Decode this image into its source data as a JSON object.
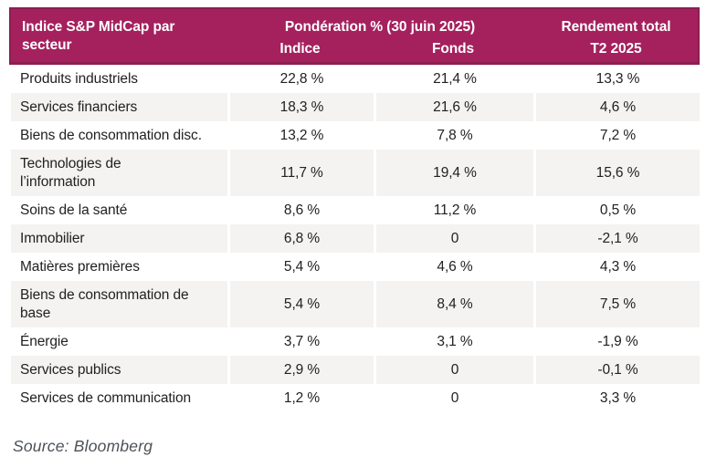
{
  "table": {
    "header": {
      "title": "Indice S&P MidCap par secteur",
      "weight_group": "Pondération % (30 juin 2025)",
      "sub_indice": "Indice",
      "sub_fonds": "Fonds",
      "return_title": "Rendement total",
      "return_period": "T2 2025"
    },
    "rows": [
      {
        "label": "Produits industriels",
        "indice": "22,8 %",
        "fonds": "21,4 %",
        "rendement": "13,3 %"
      },
      {
        "label": "Services financiers",
        "indice": "18,3 %",
        "fonds": "21,6 %",
        "rendement": "4,6 %"
      },
      {
        "label": "Biens de consommation disc.",
        "indice": "13,2 %",
        "fonds": "7,8 %",
        "rendement": "7,2 %"
      },
      {
        "label": "Technologies de\nl’information",
        "indice": "11,7 %",
        "fonds": "19,4 %",
        "rendement": "15,6 %"
      },
      {
        "label": "Soins de la santé",
        "indice": "8,6 %",
        "fonds": "11,2 %",
        "rendement": "0,5 %"
      },
      {
        "label": "Immobilier",
        "indice": "6,8 %",
        "fonds": "0",
        "rendement": "-2,1 %"
      },
      {
        "label": "Matières premières",
        "indice": "5,4 %",
        "fonds": "4,6 %",
        "rendement": "4,3 %"
      },
      {
        "label": "Biens de consommation de\nbase",
        "indice": "5,4 %",
        "fonds": "8,4 %",
        "rendement": "7,5 %"
      },
      {
        "label": "Énergie",
        "indice": "3,7 %",
        "fonds": "3,1 %",
        "rendement": "-1,9 %"
      },
      {
        "label": "Services publics",
        "indice": "2,9 %",
        "fonds": "0",
        "rendement": "-0,1 %"
      },
      {
        "label": "Services de communication",
        "indice": "1,2 %",
        "fonds": "0",
        "rendement": "3,3 %"
      }
    ]
  },
  "source": "Source: Bloomberg",
  "colors": {
    "header_bg": "#A4215E",
    "header_border": "#8C1E50",
    "stripe": "#F4F3F1",
    "body_text": "#212121",
    "source_text": "#4D5156"
  },
  "chart_data": {
    "type": "table",
    "title": "Indice S&P MidCap par secteur — Pondération % (30 juin 2025) / Rendement total T2 2025",
    "columns": [
      "Secteur",
      "Indice",
      "Fonds",
      "Rendement total T2 2025"
    ],
    "rows": [
      [
        "Produits industriels",
        22.8,
        21.4,
        13.3
      ],
      [
        "Services financiers",
        18.3,
        21.6,
        4.6
      ],
      [
        "Biens de consommation disc.",
        13.2,
        7.8,
        7.2
      ],
      [
        "Technologies de l’information",
        11.7,
        19.4,
        15.6
      ],
      [
        "Soins de la santé",
        8.6,
        11.2,
        0.5
      ],
      [
        "Immobilier",
        6.8,
        0,
        -2.1
      ],
      [
        "Matières premières",
        5.4,
        4.6,
        4.3
      ],
      [
        "Biens de consommation de base",
        5.4,
        8.4,
        7.5
      ],
      [
        "Énergie",
        3.7,
        3.1,
        -1.9
      ],
      [
        "Services publics",
        2.9,
        0,
        -0.1
      ],
      [
        "Services de communication",
        1.2,
        0,
        3.3
      ]
    ],
    "source": "Bloomberg"
  }
}
